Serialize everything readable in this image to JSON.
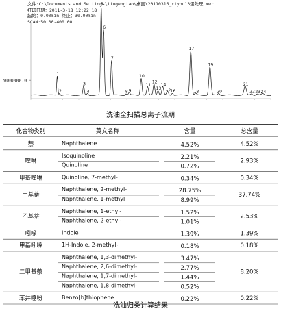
{
  "header": {
    "line1": "文件:C:\\Documents and Settings\\liugengtao\\桌面\\20110316_xiyou13蛋处理.xwr",
    "line2": "打印日期：2011-3-18  12:22:18",
    "line3": "起始：0.00min  终止：30.00min",
    "line4": "SCAN:50.00-400.00"
  },
  "chart_data": {
    "type": "line",
    "title": "洗油全扫描总离子流期",
    "y_tick_label": "5000000.0",
    "x_range": [
      0,
      30
    ],
    "y_range": [
      0,
      30000000
    ],
    "peaks": [
      {
        "label": "1",
        "x": 3.3,
        "y": 6200000
      },
      {
        "label": "2",
        "x": 3.6,
        "y": 700000
      },
      {
        "label": "3",
        "x": 6.6,
        "y": 3000000
      },
      {
        "label": "4",
        "x": 7.1,
        "y": 600000
      },
      {
        "label": "5",
        "x": 8.8,
        "y": 28500000
      },
      {
        "label": "6",
        "x": 9.1,
        "y": 21000000
      },
      {
        "label": "7",
        "x": 10.1,
        "y": 11200000
      },
      {
        "label": "8",
        "x": 11.9,
        "y": 500000
      },
      {
        "label": "9",
        "x": 12.3,
        "y": 800000
      },
      {
        "label": "10",
        "x": 13.8,
        "y": 5500000
      },
      {
        "label": "11",
        "x": 14.6,
        "y": 2600000
      },
      {
        "label": "12",
        "x": 15.4,
        "y": 3600000
      },
      {
        "label": "13",
        "x": 15.9,
        "y": 1500000
      },
      {
        "label": "14",
        "x": 16.5,
        "y": 2700000
      },
      {
        "label": "15",
        "x": 17.1,
        "y": 1200000
      },
      {
        "label": "16",
        "x": 17.7,
        "y": 700000
      },
      {
        "label": "17",
        "x": 20.0,
        "y": 14200000
      },
      {
        "label": "18",
        "x": 20.6,
        "y": 500000
      },
      {
        "label": "19",
        "x": 22.4,
        "y": 9100000
      },
      {
        "label": "20",
        "x": 23.5,
        "y": 600000
      },
      {
        "label": "21",
        "x": 26.8,
        "y": 2800000
      },
      {
        "label": "22",
        "x": 27.6,
        "y": 500000
      },
      {
        "label": "23",
        "x": 28.3,
        "y": 400000
      },
      {
        "label": "24",
        "x": 29.0,
        "y": 400000
      }
    ]
  },
  "table": {
    "caption": "洗油归类计算结果",
    "headers": [
      "化合物类别",
      "英文名称",
      "含量",
      "总含量"
    ],
    "groups": [
      {
        "category": "萘",
        "total": "4.52%",
        "items": [
          {
            "name": "Naphthalene",
            "content": "4.52%"
          }
        ]
      },
      {
        "category": "喹啉",
        "total": "2.93%",
        "items": [
          {
            "name": "Isoquinoline",
            "content": "2.21%"
          },
          {
            "name": "Quinoline",
            "content": "0.72%"
          }
        ]
      },
      {
        "category": "甲基喹啉",
        "total": "0.34%",
        "items": [
          {
            "name": "Quinoline, 7-methyl-",
            "content": "0.34%"
          }
        ]
      },
      {
        "category": "甲基萘",
        "total": "37.74%",
        "items": [
          {
            "name": "Naphthalene, 2-methyl-",
            "content": "28.75%"
          },
          {
            "name": "Naphthalene, 1-methyl",
            "content": "8.99%"
          }
        ]
      },
      {
        "category": "乙基萘",
        "total": "2.53%",
        "items": [
          {
            "name": "Naphthalene, 1-ethyl-",
            "content": "1.52%"
          },
          {
            "name": "Naphthalene, 2-ethyl-",
            "content": "1.01%"
          }
        ]
      },
      {
        "category": "吲哚",
        "total": "1.39%",
        "items": [
          {
            "name": "Indole",
            "content": "1.39%"
          }
        ]
      },
      {
        "category": "甲基吲哚",
        "total": "0.18%",
        "items": [
          {
            "name": "1H-Indole, 2-methyl-",
            "content": "0.18%"
          }
        ]
      },
      {
        "category": "二甲基萘",
        "total": "8.20%",
        "items": [
          {
            "name": "Naphthalene, 1,3-dimethyl-",
            "content": "3.47%"
          },
          {
            "name": "Naphthalene, 2,6-dimethyl-",
            "content": "2.77%"
          },
          {
            "name": "Naphthalene, 1,7-dimethyl-",
            "content": "1.44%"
          },
          {
            "name": "Naphthalene, 1,8-dimethyl-",
            "content": "0.52%"
          }
        ]
      },
      {
        "category": "苯并噻吩",
        "total": "0.22%",
        "items": [
          {
            "name": "Benzo[b]thiophene",
            "content": "0.22%"
          }
        ]
      }
    ]
  }
}
